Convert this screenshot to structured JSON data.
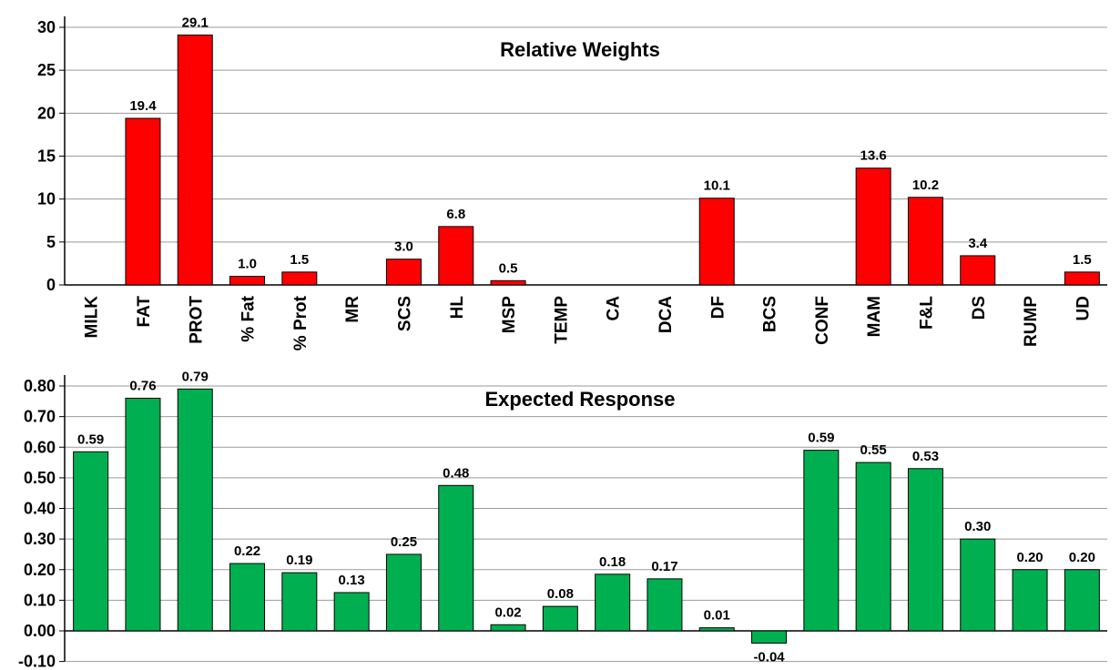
{
  "chart_data": [
    {
      "type": "bar",
      "title": "Relative Weights",
      "categories": [
        "MILK",
        "FAT",
        "PROT",
        "% Fat",
        "% Prot",
        "MR",
        "SCS",
        "HL",
        "MSP",
        "TEMP",
        "CA",
        "DCA",
        "DF",
        "BCS",
        "CONF",
        "MAM",
        "F&L",
        "DS",
        "RUMP",
        "UD"
      ],
      "values": [
        null,
        19.4,
        29.1,
        1.0,
        1.5,
        null,
        3.0,
        6.8,
        0.5,
        null,
        null,
        null,
        10.1,
        null,
        null,
        13.6,
        10.2,
        3.4,
        null,
        1.5
      ],
      "labels": [
        null,
        "19.4",
        "29.1",
        "1.0",
        "1.5",
        null,
        "3.0",
        "6.8",
        "0.5",
        null,
        null,
        null,
        "10.1",
        null,
        null,
        "13.6",
        "10.2",
        "3.4",
        null,
        "1.5"
      ],
      "ylim": [
        0,
        30
      ],
      "yticks": [
        "0",
        "5",
        "10",
        "15",
        "20",
        "25",
        "30"
      ],
      "grid": true,
      "bar_color": "#ff0000"
    },
    {
      "type": "bar",
      "title": "Expected Response",
      "categories": [
        "MILK",
        "FAT",
        "PROT",
        "% Fat",
        "% Prot",
        "MR",
        "SCS",
        "HL",
        "MSP",
        "TEMP",
        "CA",
        "DCA",
        "DF",
        "BCS",
        "CONF",
        "MAM",
        "F&L",
        "DS",
        "RUMP",
        "UD"
      ],
      "values": [
        0.585,
        0.76,
        0.79,
        0.22,
        0.19,
        0.125,
        0.25,
        0.475,
        0.02,
        0.08,
        0.185,
        0.17,
        0.01,
        -0.04,
        0.59,
        0.55,
        0.53,
        0.3,
        0.2,
        0.2
      ],
      "labels": [
        "0.59",
        "0.76",
        "0.79",
        "0.22",
        "0.19",
        "0.13",
        "0.25",
        "0.48",
        "0.02",
        "0.08",
        "0.18",
        "0.17",
        "0.01",
        "-0.04",
        "0.59",
        "0.55",
        "0.53",
        "0.30",
        "0.20",
        "0.20"
      ],
      "ylim": [
        -0.1,
        0.8
      ],
      "yticks": [
        "-0.10",
        "0.00",
        "0.10",
        "0.20",
        "0.30",
        "0.40",
        "0.50",
        "0.60",
        "0.70",
        "0.80"
      ],
      "grid": true,
      "bar_color": "#00b050"
    }
  ]
}
